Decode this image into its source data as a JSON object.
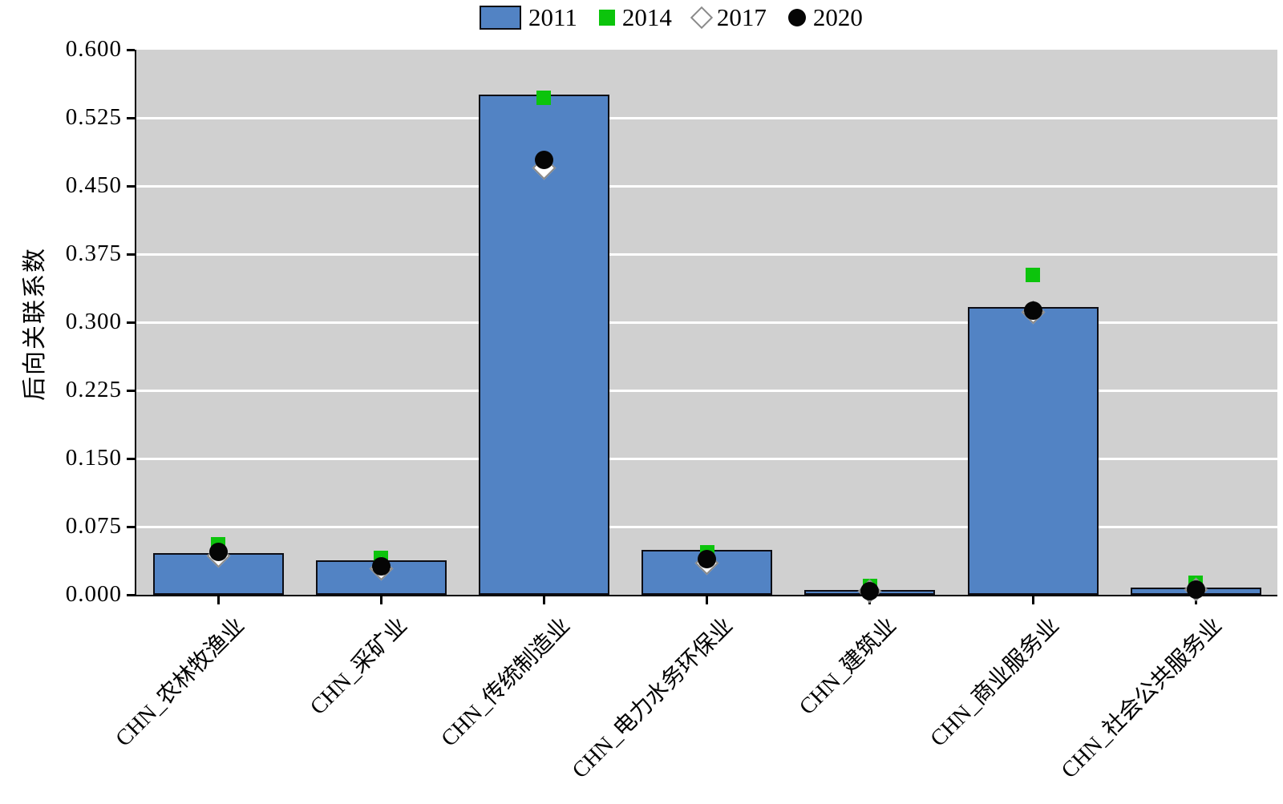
{
  "chart_data": {
    "type": "bar",
    "title": "",
    "ylabel": "后向关联系数",
    "xlabel": "",
    "ylim": [
      0,
      0.6
    ],
    "ytick_step": 0.075,
    "ytick_labels": [
      "0.000",
      "0.075",
      "0.150",
      "0.225",
      "0.300",
      "0.375",
      "0.450",
      "0.525",
      "0.600"
    ],
    "grid": true,
    "plot_bg_color": "#d0d0d0",
    "gridline_color": "#ffffff",
    "legend_position": "top-center",
    "categories": [
      "CHN_农林牧渔业",
      "CHN_采矿业",
      "CHN_传统制造业",
      "CHN_电力水务环保业",
      "CHN_建筑业",
      "CHN_商业服务业",
      "CHN_社会公共服务业"
    ],
    "series": [
      {
        "name": "2011",
        "marker": "bar",
        "color": "#5283c4",
        "values": [
          0.046,
          0.038,
          0.551,
          0.049,
          0.005,
          0.317,
          0.008
        ]
      },
      {
        "name": "2014",
        "marker": "square",
        "color": "#0cc40c",
        "values": [
          0.056,
          0.041,
          0.547,
          0.047,
          0.01,
          0.352,
          0.013
        ]
      },
      {
        "name": "2017",
        "marker": "diamond",
        "color": "#ffffff",
        "values": [
          0.043,
          0.029,
          0.47,
          0.035,
          0.004,
          0.311,
          0.006
        ]
      },
      {
        "name": "2020",
        "marker": "circle",
        "color": "#050505",
        "values": [
          0.047,
          0.031,
          0.479,
          0.039,
          0.004,
          0.313,
          0.006
        ]
      }
    ]
  }
}
